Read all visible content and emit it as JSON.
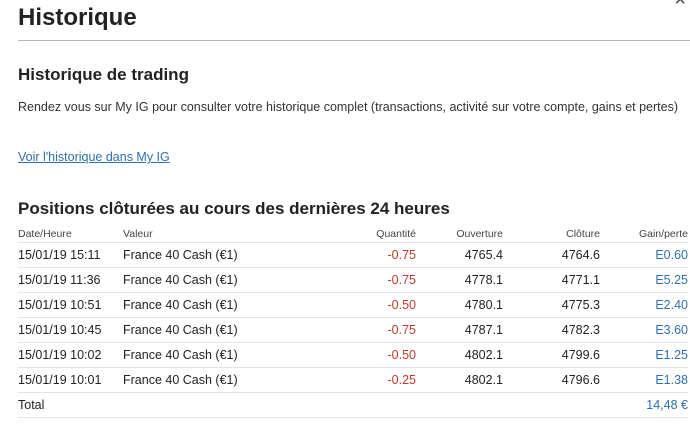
{
  "header": {
    "title": "Historique",
    "close_glyph": "×"
  },
  "trading_history": {
    "heading": "Historique de trading",
    "description": "Rendez vous sur My IG pour consulter votre historique complet (transactions, activité sur votre compte, gains et pertes)",
    "link_label": "Voir l'historique dans My IG"
  },
  "closed_positions": {
    "heading": "Positions clôturées au cours des dernières 24 heures",
    "columns": {
      "date": "Date/Heure",
      "value": "Valeur",
      "quantity": "Quantité",
      "open": "Ouverture",
      "close": "Clôture",
      "gain": "Gain/perte"
    },
    "rows": [
      {
        "date": "15/01/19 15:11",
        "value": "France 40 Cash (€1)",
        "quantity": "-0.75",
        "open": "4765.4",
        "close": "4764.6",
        "gain": "E0.60"
      },
      {
        "date": "15/01/19 11:36",
        "value": "France 40 Cash (€1)",
        "quantity": "-0.75",
        "open": "4778.1",
        "close": "4771.1",
        "gain": "E5.25"
      },
      {
        "date": "15/01/19 10:51",
        "value": "France 40 Cash (€1)",
        "quantity": "-0.50",
        "open": "4780.1",
        "close": "4775.3",
        "gain": "E2.40"
      },
      {
        "date": "15/01/19 10:45",
        "value": "France 40 Cash (€1)",
        "quantity": "-0.75",
        "open": "4787.1",
        "close": "4782.3",
        "gain": "E3.60"
      },
      {
        "date": "15/01/19 10:02",
        "value": "France 40 Cash (€1)",
        "quantity": "-0.50",
        "open": "4802.1",
        "close": "4799.6",
        "gain": "E1.25"
      },
      {
        "date": "15/01/19 10:01",
        "value": "France 40 Cash (€1)",
        "quantity": "-0.25",
        "open": "4802.1",
        "close": "4796.6",
        "gain": "E1.38"
      }
    ],
    "total_label": "Total",
    "total_value": "14,48 €"
  },
  "colors": {
    "negative": "#c0392b",
    "gain": "#2f6fad",
    "link": "#2f6fad"
  }
}
